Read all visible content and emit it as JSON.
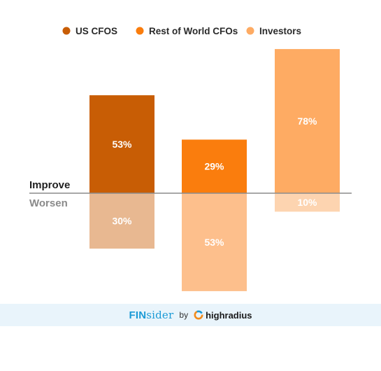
{
  "chart_data": {
    "type": "bar",
    "categories": [
      "US CFOS",
      "Rest of World CFOs",
      "Investors"
    ],
    "groups": [
      "Improve",
      "Worsen"
    ],
    "series": [
      {
        "name": "US CFOS",
        "improve": 53,
        "worsen": 30,
        "improve_label": "53%",
        "worsen_label": "30%"
      },
      {
        "name": "Rest of World CFOs",
        "improve": 29,
        "worsen": 53,
        "improve_label": "29%",
        "worsen_label": "53%"
      },
      {
        "name": "Investors",
        "improve": 78,
        "worsen": 10,
        "improve_label": "78%",
        "worsen_label": "10%"
      }
    ],
    "axis_labels": {
      "positive": "Improve",
      "negative": "Worsen"
    },
    "legend_position": "top",
    "grid": false,
    "ylim": [
      -53,
      78
    ]
  },
  "colors": {
    "improve": [
      "#c85d05",
      "#fa7d0d",
      "#feab63"
    ],
    "worsen": [
      "#e8b891",
      "#fdbf8c",
      "#fdd4b0"
    ],
    "baseline": "#8c8c8c",
    "improve_text": "#1f1f1f",
    "worsen_text": "#8a8a8a",
    "bar_label": "#ffffff"
  },
  "footer": {
    "brand_bold": "FIN",
    "brand_rest": "sider",
    "by": "by",
    "partner": "highradius",
    "partner_icon": "highradius-logo-icon"
  }
}
